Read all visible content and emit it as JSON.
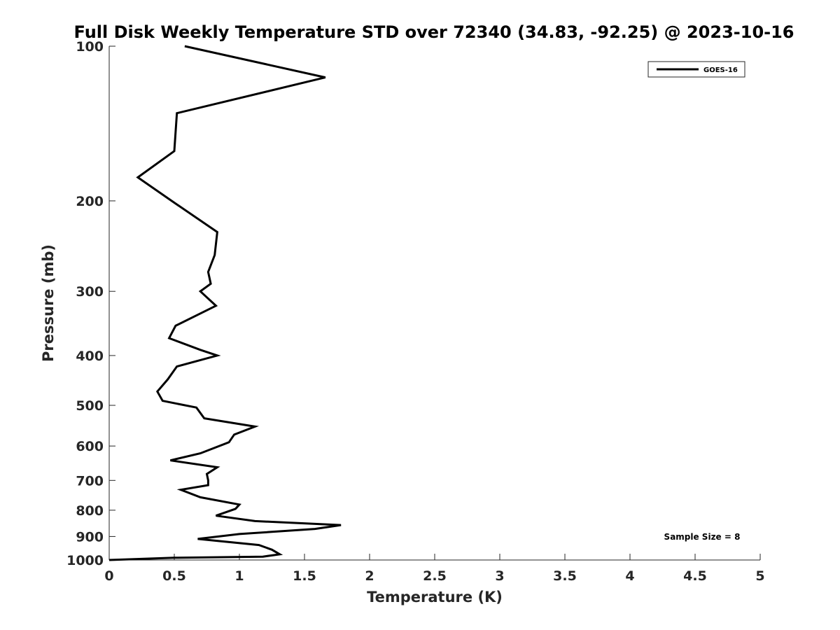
{
  "chart_data": {
    "type": "line",
    "title": "Full Disk Weekly Temperature STD over 72340 (34.83, -92.25) @ 2023-10-16",
    "xlabel": "Temperature (K)",
    "ylabel": "Pressure (mb)",
    "xlim": [
      0,
      5
    ],
    "ylim": [
      100,
      1000
    ],
    "y_scale": "log",
    "y_reversed": true,
    "grid": false,
    "legend_position": "top-right",
    "x_ticks": [
      "0",
      "0.5",
      "1",
      "1.5",
      "2",
      "2.5",
      "3",
      "3.5",
      "4",
      "4.5",
      "5"
    ],
    "y_ticks": [
      "100",
      "200",
      "300",
      "400",
      "500",
      "600",
      "700",
      "800",
      "900",
      "1000"
    ],
    "series": [
      {
        "name": "GOES-16",
        "color": "#000000",
        "points": [
          [
            0.58,
            100
          ],
          [
            1.66,
            115
          ],
          [
            0.52,
            135
          ],
          [
            0.5,
            160
          ],
          [
            0.22,
            180
          ],
          [
            0.48,
            200
          ],
          [
            0.83,
            230
          ],
          [
            0.81,
            255
          ],
          [
            0.76,
            275
          ],
          [
            0.78,
            290
          ],
          [
            0.7,
            300
          ],
          [
            0.82,
            320
          ],
          [
            0.51,
            350
          ],
          [
            0.46,
            370
          ],
          [
            0.7,
            390
          ],
          [
            0.83,
            400
          ],
          [
            0.52,
            420
          ],
          [
            0.45,
            445
          ],
          [
            0.37,
            470
          ],
          [
            0.41,
            490
          ],
          [
            0.67,
            505
          ],
          [
            0.73,
            530
          ],
          [
            1.12,
            550
          ],
          [
            0.96,
            570
          ],
          [
            0.92,
            590
          ],
          [
            0.7,
            620
          ],
          [
            0.47,
            640
          ],
          [
            0.83,
            660
          ],
          [
            0.75,
            680
          ],
          [
            0.76,
            700
          ],
          [
            0.76,
            715
          ],
          [
            0.55,
            730
          ],
          [
            0.7,
            755
          ],
          [
            1.0,
            780
          ],
          [
            0.97,
            795
          ],
          [
            0.82,
            820
          ],
          [
            1.12,
            840
          ],
          [
            1.78,
            855
          ],
          [
            1.58,
            870
          ],
          [
            1.0,
            890
          ],
          [
            0.68,
            910
          ],
          [
            1.15,
            935
          ],
          [
            1.25,
            955
          ],
          [
            1.31,
            975
          ],
          [
            1.18,
            985
          ],
          [
            0.5,
            990
          ],
          [
            0.0,
            1000
          ]
        ]
      }
    ],
    "annotations": [
      "Sample Size = 8"
    ]
  }
}
